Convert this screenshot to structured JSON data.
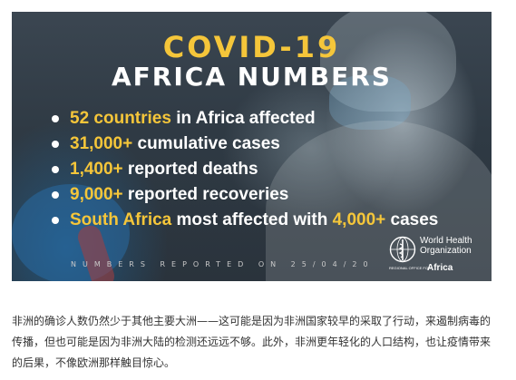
{
  "banner": {
    "title_line1": "COVID-19",
    "title_line2": "AFRICA NUMBERS",
    "bullets": [
      {
        "highlight": "52 countries",
        "text": " in Africa affected"
      },
      {
        "highlight": "31,000+",
        "text": " cumulative cases"
      },
      {
        "highlight": "1,400+",
        "text": " reported deaths"
      },
      {
        "highlight": "9,000+",
        "text": " reported recoveries"
      },
      {
        "highlight": "South Africa",
        "text": " most affected with ",
        "highlight2": "4,000+",
        "text2": " cases"
      }
    ],
    "reported_note": "NUMBERS REPORTED ON 25/04/20",
    "who_logo": {
      "name": "World Health Organization",
      "region_small": "REGIONAL OFFICE FOR",
      "region": "Africa"
    },
    "colors": {
      "highlight": "#f5c63a",
      "text": "#ffffff"
    }
  },
  "caption": "非洲的确诊人数仍然少于其他主要大洲——这可能是因为非洲国家较早的采取了行动，来遏制病毒的传播，但也可能是因为非洲大陆的检测还远远不够。此外，非洲更年轻化的人口结构，也让疫情带来的后果，不像欧洲那样触目惊心。"
}
